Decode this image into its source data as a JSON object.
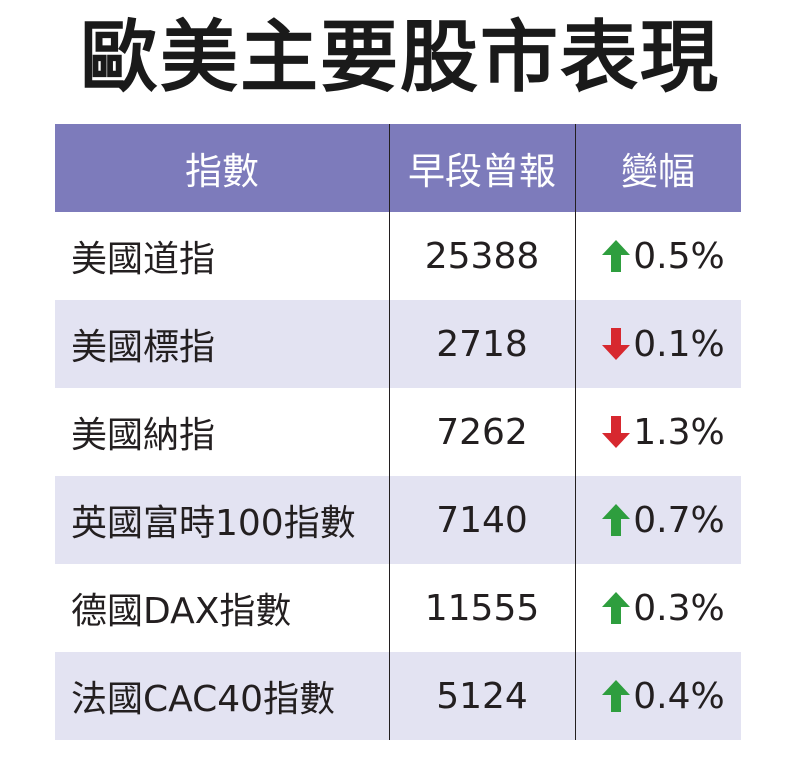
{
  "title": "歐美主要股市表現",
  "headers": {
    "index": "指數",
    "value": "早段曾報",
    "change": "變幅"
  },
  "rows": [
    {
      "name": "美國道指",
      "value": "25388",
      "change": "0.5%",
      "direction": "up"
    },
    {
      "name": "美國標指",
      "value": "2718",
      "change": "0.1%",
      "direction": "down"
    },
    {
      "name": "美國納指",
      "value": "7262",
      "change": "1.3%",
      "direction": "down"
    },
    {
      "name": "英國富時100指數",
      "value": "7140",
      "change": "0.7%",
      "direction": "up"
    },
    {
      "name": "德國DAX指數",
      "value": "11555",
      "change": "0.3%",
      "direction": "up"
    },
    {
      "name": "法國CAC40指數",
      "value": "5124",
      "change": "0.4%",
      "direction": "up"
    }
  ],
  "colors": {
    "header_bg": "#7d7bbb",
    "row_shade": "#e3e3f2",
    "up": "#2e9e3e",
    "down": "#d7282f"
  }
}
